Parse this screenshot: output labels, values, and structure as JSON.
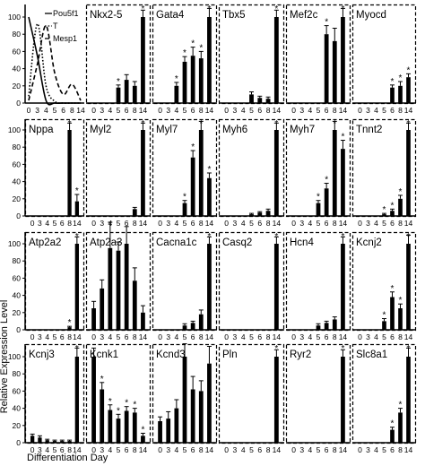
{
  "figure": {
    "y_axis_label": "Relative Expression Level",
    "x_axis_label": "Differentiation Day",
    "legend_lines": [
      "Pou5f1",
      "T",
      "Mesp1"
    ]
  },
  "chart_data": {
    "type": "bar",
    "categories": [
      "0",
      "3",
      "4",
      "5",
      "6",
      "8",
      "14"
    ],
    "ylim": [
      0,
      100
    ],
    "yticks": [
      0,
      20,
      40,
      60,
      80,
      100
    ],
    "grid": false,
    "significance_marker": "*",
    "line_inset": {
      "type": "line",
      "series": [
        {
          "name": "Pou5f1",
          "style": "solid",
          "values": [
            100,
            55,
            3,
            0,
            0,
            0,
            0
          ]
        },
        {
          "name": "T",
          "style": "dotted",
          "values": [
            8,
            92,
            20,
            2,
            0,
            0,
            0
          ]
        },
        {
          "name": "Mesp1",
          "style": "dashed",
          "values": [
            3,
            45,
            90,
            35,
            10,
            22,
            3
          ]
        }
      ]
    },
    "genes": [
      {
        "name": "Nkx2-5",
        "values": [
          0,
          0,
          0,
          18,
          27,
          20,
          100
        ],
        "errors": [
          0,
          0,
          0,
          3,
          6,
          5,
          8
        ],
        "sig": [
          0,
          0,
          0,
          1,
          0,
          0,
          1
        ]
      },
      {
        "name": "Gata4",
        "values": [
          0,
          0,
          20,
          48,
          55,
          52,
          100
        ],
        "errors": [
          0,
          0,
          4,
          6,
          10,
          8,
          10
        ],
        "sig": [
          0,
          0,
          1,
          1,
          1,
          1,
          1
        ]
      },
      {
        "name": "Tbx5",
        "values": [
          0,
          0,
          0,
          10,
          6,
          5,
          100
        ],
        "errors": [
          0,
          0,
          0,
          3,
          2,
          2,
          8
        ],
        "sig": [
          0,
          0,
          0,
          0,
          0,
          0,
          1
        ]
      },
      {
        "name": "Mef2c",
        "values": [
          0,
          0,
          0,
          0,
          80,
          72,
          100
        ],
        "errors": [
          0,
          0,
          0,
          0,
          10,
          15,
          10
        ],
        "sig": [
          0,
          0,
          0,
          0,
          1,
          0,
          1
        ]
      },
      {
        "name": "Myocd",
        "values": [
          0,
          0,
          0,
          0,
          18,
          20,
          30
        ],
        "errors": [
          0,
          0,
          0,
          0,
          3,
          5,
          4
        ],
        "sig": [
          0,
          0,
          0,
          0,
          1,
          1,
          1
        ]
      },
      {
        "name": "Nppa",
        "values": [
          0,
          0,
          0,
          0,
          0,
          100,
          17
        ],
        "errors": [
          0,
          0,
          0,
          0,
          0,
          8,
          8
        ],
        "sig": [
          0,
          0,
          0,
          0,
          0,
          1,
          1
        ]
      },
      {
        "name": "Myl2",
        "values": [
          0,
          0,
          0,
          0,
          0,
          8,
          100
        ],
        "errors": [
          0,
          0,
          0,
          0,
          0,
          2,
          8
        ],
        "sig": [
          0,
          0,
          0,
          0,
          0,
          0,
          1
        ]
      },
      {
        "name": "Myl7",
        "values": [
          0,
          0,
          0,
          15,
          68,
          100,
          44
        ],
        "errors": [
          0,
          0,
          0,
          3,
          8,
          10,
          6
        ],
        "sig": [
          0,
          0,
          0,
          1,
          1,
          1,
          1
        ]
      },
      {
        "name": "Myh6",
        "values": [
          0,
          0,
          0,
          2,
          4,
          6,
          100
        ],
        "errors": [
          0,
          0,
          0,
          1,
          1,
          2,
          8
        ],
        "sig": [
          0,
          0,
          0,
          0,
          0,
          0,
          1
        ]
      },
      {
        "name": "Myh7",
        "values": [
          0,
          0,
          0,
          15,
          32,
          100,
          78
        ],
        "errors": [
          0,
          0,
          0,
          3,
          6,
          10,
          10
        ],
        "sig": [
          0,
          0,
          0,
          1,
          1,
          1,
          1
        ]
      },
      {
        "name": "Tnnt2",
        "values": [
          0,
          0,
          0,
          2,
          6,
          20,
          100
        ],
        "errors": [
          0,
          0,
          0,
          1,
          2,
          4,
          8
        ],
        "sig": [
          0,
          0,
          0,
          1,
          1,
          1,
          1
        ]
      },
      {
        "name": "Atp2a2",
        "values": [
          0,
          0,
          0,
          0,
          0,
          3,
          100
        ],
        "errors": [
          0,
          0,
          0,
          0,
          0,
          1,
          8
        ],
        "sig": [
          0,
          0,
          0,
          0,
          0,
          1,
          1
        ]
      },
      {
        "name": "Atp2a3",
        "values": [
          25,
          48,
          95,
          92,
          100,
          57,
          20
        ],
        "errors": [
          8,
          10,
          30,
          10,
          20,
          15,
          8
        ],
        "sig": [
          0,
          0,
          0,
          0,
          0,
          0,
          0
        ]
      },
      {
        "name": "Cacna1c",
        "values": [
          0,
          0,
          0,
          5,
          8,
          18,
          100
        ],
        "errors": [
          0,
          0,
          0,
          2,
          2,
          5,
          8
        ],
        "sig": [
          0,
          0,
          0,
          0,
          0,
          0,
          1
        ]
      },
      {
        "name": "Casq2",
        "values": [
          0,
          0,
          0,
          0,
          0,
          0,
          100
        ],
        "errors": [
          0,
          0,
          0,
          0,
          0,
          0,
          8
        ],
        "sig": [
          0,
          0,
          0,
          0,
          0,
          0,
          1
        ]
      },
      {
        "name": "Hcn4",
        "values": [
          0,
          0,
          0,
          5,
          8,
          12,
          100
        ],
        "errors": [
          0,
          0,
          0,
          2,
          2,
          3,
          8
        ],
        "sig": [
          0,
          0,
          0,
          0,
          0,
          0,
          1
        ]
      },
      {
        "name": "Kcnj2",
        "values": [
          0,
          0,
          0,
          10,
          38,
          25,
          100
        ],
        "errors": [
          0,
          0,
          0,
          3,
          6,
          5,
          10
        ],
        "sig": [
          0,
          0,
          0,
          1,
          1,
          1,
          1
        ]
      },
      {
        "name": "Kcnj3",
        "values": [
          8,
          6,
          3,
          2,
          2,
          2,
          100
        ],
        "errors": [
          2,
          2,
          1,
          1,
          1,
          1,
          10
        ],
        "sig": [
          0,
          0,
          0,
          0,
          0,
          0,
          1
        ]
      },
      {
        "name": "Kcnk1",
        "values": [
          100,
          62,
          38,
          28,
          37,
          35,
          8
        ],
        "errors": [
          10,
          8,
          6,
          5,
          5,
          5,
          3
        ],
        "sig": [
          0,
          1,
          1,
          1,
          1,
          1,
          1
        ]
      },
      {
        "name": "Kcnd3",
        "values": [
          25,
          28,
          40,
          100,
          62,
          60,
          92
        ],
        "errors": [
          5,
          8,
          10,
          15,
          15,
          12,
          20
        ],
        "sig": [
          0,
          0,
          0,
          0,
          0,
          0,
          0
        ]
      },
      {
        "name": "Pln",
        "values": [
          0,
          0,
          0,
          0,
          0,
          0,
          100
        ],
        "errors": [
          0,
          0,
          0,
          0,
          0,
          0,
          8
        ],
        "sig": [
          0,
          0,
          0,
          0,
          0,
          0,
          1
        ]
      },
      {
        "name": "Ryr2",
        "values": [
          0,
          0,
          0,
          0,
          0,
          0,
          100
        ],
        "errors": [
          0,
          0,
          0,
          0,
          0,
          0,
          8
        ],
        "sig": [
          0,
          0,
          0,
          0,
          0,
          0,
          1
        ]
      },
      {
        "name": "Slc8a1",
        "values": [
          0,
          0,
          0,
          0,
          15,
          35,
          100
        ],
        "errors": [
          0,
          0,
          0,
          0,
          3,
          5,
          10
        ],
        "sig": [
          0,
          0,
          0,
          0,
          1,
          1,
          1
        ]
      }
    ]
  }
}
